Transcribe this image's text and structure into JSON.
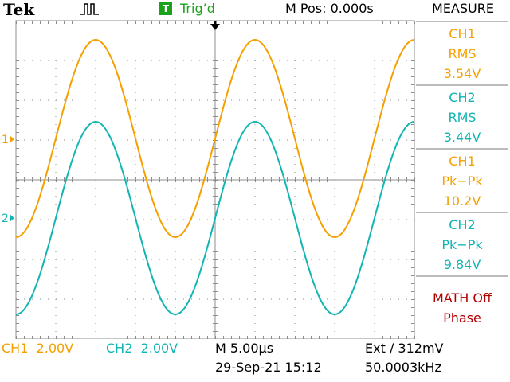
{
  "header": {
    "brand": "Tek",
    "acquire_icon": "pulse-run-icon",
    "trigger_badge": "T",
    "trigger_status": "Trig’d",
    "horizontal_position": "M Pos: 0.000s"
  },
  "measure": {
    "title": "MEASURE",
    "items": [
      {
        "source": "CH1",
        "type": "RMS",
        "value": "3.54V",
        "color": "#f5a000"
      },
      {
        "source": "CH2",
        "type": "RMS",
        "value": "3.44V",
        "color": "#12b4b4"
      },
      {
        "source": "CH1",
        "type": "Pk−Pk",
        "value": "10.2V",
        "color": "#f5a000"
      },
      {
        "source": "CH2",
        "type": "Pk−Pk",
        "value": "9.84V",
        "color": "#12b4b4"
      }
    ],
    "math": {
      "label": "MATH Off",
      "type": "Phase",
      "color": "#b30000"
    }
  },
  "markers": {
    "ch1": "1",
    "ch2": "2",
    "trigger_position_icon": "down-arrow-icon"
  },
  "footer": {
    "ch1_scale": "CH1  2.00V",
    "ch2_scale": "CH2  2.00V",
    "timebase": "M 5.00µs",
    "datetime": "29-Sep-21 15:12",
    "trigger": "Ext ∕ 312mV",
    "frequency": "50.0003kHz"
  },
  "colors": {
    "ch1": "#f5a000",
    "ch2": "#12b4b4",
    "grid": "#8c8c8c",
    "trigger": "#1aa31a"
  }
}
